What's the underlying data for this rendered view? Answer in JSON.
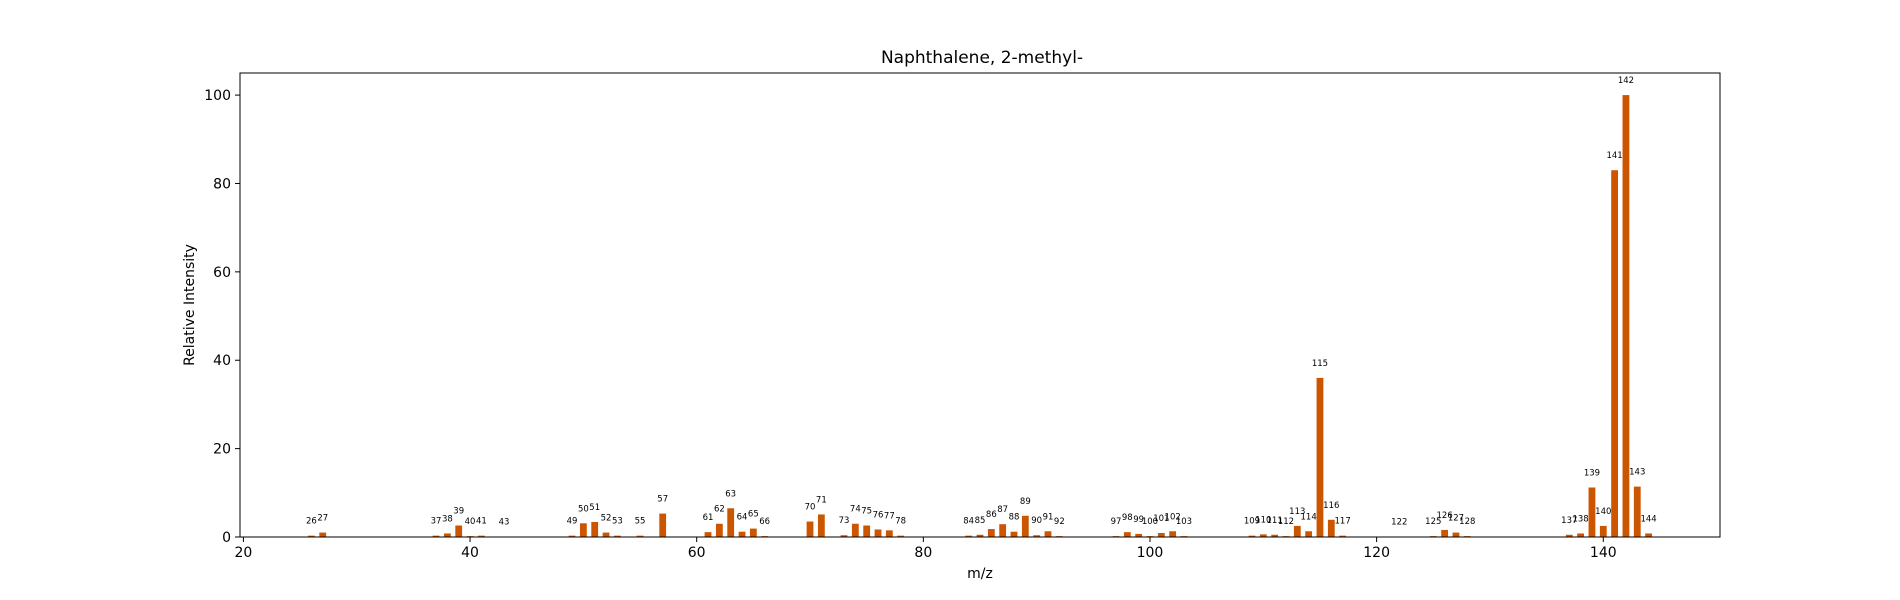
{
  "chart_data": {
    "type": "bar",
    "title": "Naphthalene, 2-methyl-",
    "xlabel": "m/z",
    "ylabel": "Relative Intensity",
    "xlim": [
      19.7,
      150.3
    ],
    "ylim": [
      0,
      105
    ],
    "xticks": [
      20,
      40,
      60,
      80,
      100,
      120,
      140
    ],
    "yticks": [
      0,
      20,
      40,
      60,
      80,
      100
    ],
    "grid": false,
    "bar_color": "#cc5500",
    "x": [
      26,
      27,
      37,
      38,
      39,
      40,
      41,
      43,
      49,
      50,
      51,
      52,
      53,
      55,
      57,
      61,
      62,
      63,
      64,
      65,
      66,
      70,
      71,
      73,
      74,
      75,
      76,
      77,
      78,
      84,
      85,
      86,
      87,
      88,
      89,
      90,
      91,
      92,
      97,
      98,
      99,
      100,
      101,
      102,
      103,
      109,
      110,
      111,
      112,
      113,
      114,
      115,
      116,
      117,
      122,
      125,
      126,
      127,
      128,
      137,
      138,
      139,
      140,
      141,
      142,
      143,
      144
    ],
    "values": [
      0.3,
      1.0,
      0.3,
      0.8,
      2.6,
      0.2,
      0.3,
      0.1,
      0.3,
      3.1,
      3.4,
      1.0,
      0.3,
      0.3,
      5.3,
      1.1,
      3.0,
      6.5,
      1.2,
      1.9,
      0.2,
      3.5,
      5.1,
      0.4,
      3.0,
      2.6,
      1.7,
      1.5,
      0.3,
      0.3,
      0.5,
      1.8,
      2.9,
      1.2,
      4.8,
      0.4,
      1.3,
      0.2,
      0.2,
      1.1,
      0.7,
      0.2,
      0.9,
      1.3,
      0.2,
      0.3,
      0.6,
      0.5,
      0.2,
      2.5,
      1.3,
      36.0,
      3.9,
      0.3,
      0.1,
      0.2,
      1.6,
      1.0,
      0.2,
      0.5,
      0.8,
      11.2,
      2.5,
      83.0,
      100.0,
      11.4,
      0.8
    ]
  }
}
